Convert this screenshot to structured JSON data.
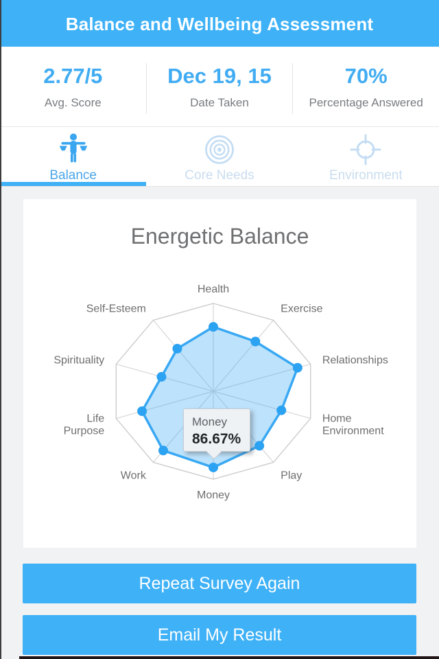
{
  "header": {
    "title": "Balance and Wellbeing Assessment"
  },
  "stats": [
    {
      "value": "2.77/5",
      "label": "Avg. Score"
    },
    {
      "value": "Dec 19, 15",
      "label": "Date Taken"
    },
    {
      "value": "70%",
      "label": "Percentage Answered"
    }
  ],
  "tabs": [
    {
      "label": "Balance",
      "icon": "balance-scale-icon",
      "active": true
    },
    {
      "label": "Core Needs",
      "icon": "bullseye-icon",
      "active": false
    },
    {
      "label": "Environment",
      "icon": "crosshair-target-icon",
      "active": false
    }
  ],
  "chart_data": {
    "type": "radar",
    "title": "Energetic Balance",
    "categories": [
      "Health",
      "Exercise",
      "Relationships",
      "Home Environment",
      "Play",
      "Money",
      "Work",
      "Life Purpose",
      "Spirituality",
      "Self-Esteem"
    ],
    "values": [
      73.33,
      70,
      86.67,
      70,
      76.67,
      86.67,
      83.33,
      73.33,
      53.33,
      60
    ],
    "value_unit": "%",
    "scale": {
      "min": 0,
      "max": 100
    },
    "grid": {
      "rings": 1,
      "spokes": true
    },
    "legend": "none",
    "tooltip": {
      "category": "Money",
      "value": "86.67%"
    },
    "colors": {
      "line": "#38A8F3",
      "fill": "rgba(56,168,243,0.33)",
      "point": "#2BA2F2",
      "grid": "#CBCBCD",
      "spoke": "#D7D7D9",
      "label": "#6E6E6E"
    }
  },
  "buttons": [
    {
      "label": "Repeat Survey Again"
    },
    {
      "label": "Email My Result"
    }
  ],
  "colors": {
    "accent": "#3EB1F7",
    "stat_value": "#41ACF2",
    "active_tab": "#4BA5E8",
    "inactive_tab": "#C9DDEF"
  }
}
